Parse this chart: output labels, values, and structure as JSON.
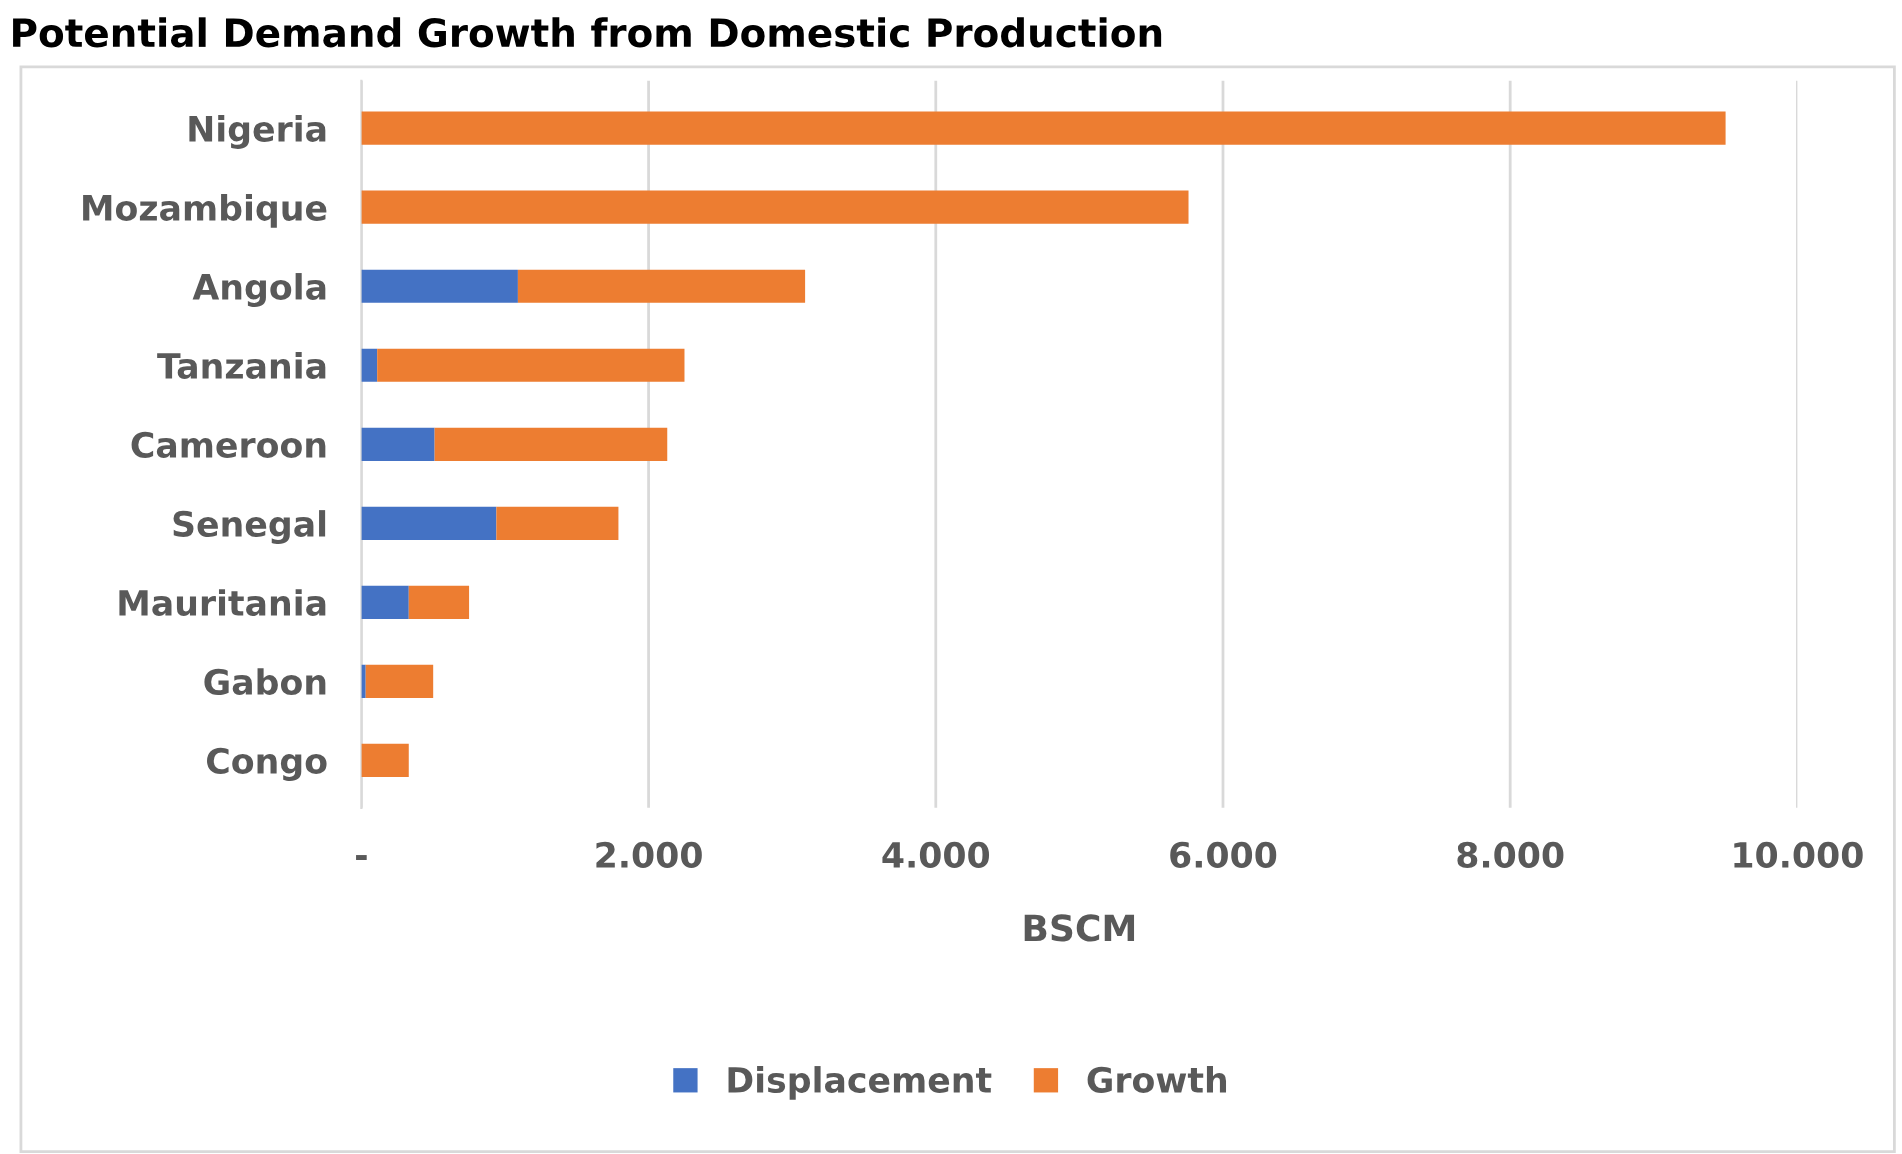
{
  "chart_data": {
    "type": "bar",
    "orientation": "horizontal",
    "stacked": true,
    "title": "Potential Demand Growth from Domestic Production",
    "xlabel": "BSCM",
    "categories": [
      "Nigeria",
      "Mozambique",
      "Angola",
      "Tanzania",
      "Cameroon",
      "Senegal",
      "Mauritania",
      "Gabon",
      "Congo"
    ],
    "series": [
      {
        "name": "Displacement",
        "color": "#4472c4",
        "values": [
          0,
          0,
          1.09,
          0.11,
          0.51,
          0.94,
          0.33,
          0.03,
          0
        ]
      },
      {
        "name": "Growth",
        "color": "#ed7d31",
        "values": [
          9.5,
          5.76,
          2.0,
          2.14,
          1.62,
          0.85,
          0.42,
          0.47,
          0.33
        ]
      }
    ],
    "xlim": [
      0,
      10
    ],
    "xticks": [
      {
        "value": 0,
        "label": "-"
      },
      {
        "value": 2,
        "label": "2.000"
      },
      {
        "value": 4,
        "label": "4.000"
      },
      {
        "value": 6,
        "label": "6.000"
      },
      {
        "value": 8,
        "label": "8.000"
      },
      {
        "value": 10,
        "label": "10.000"
      }
    ],
    "grid": "x",
    "legend": "bottom"
  }
}
